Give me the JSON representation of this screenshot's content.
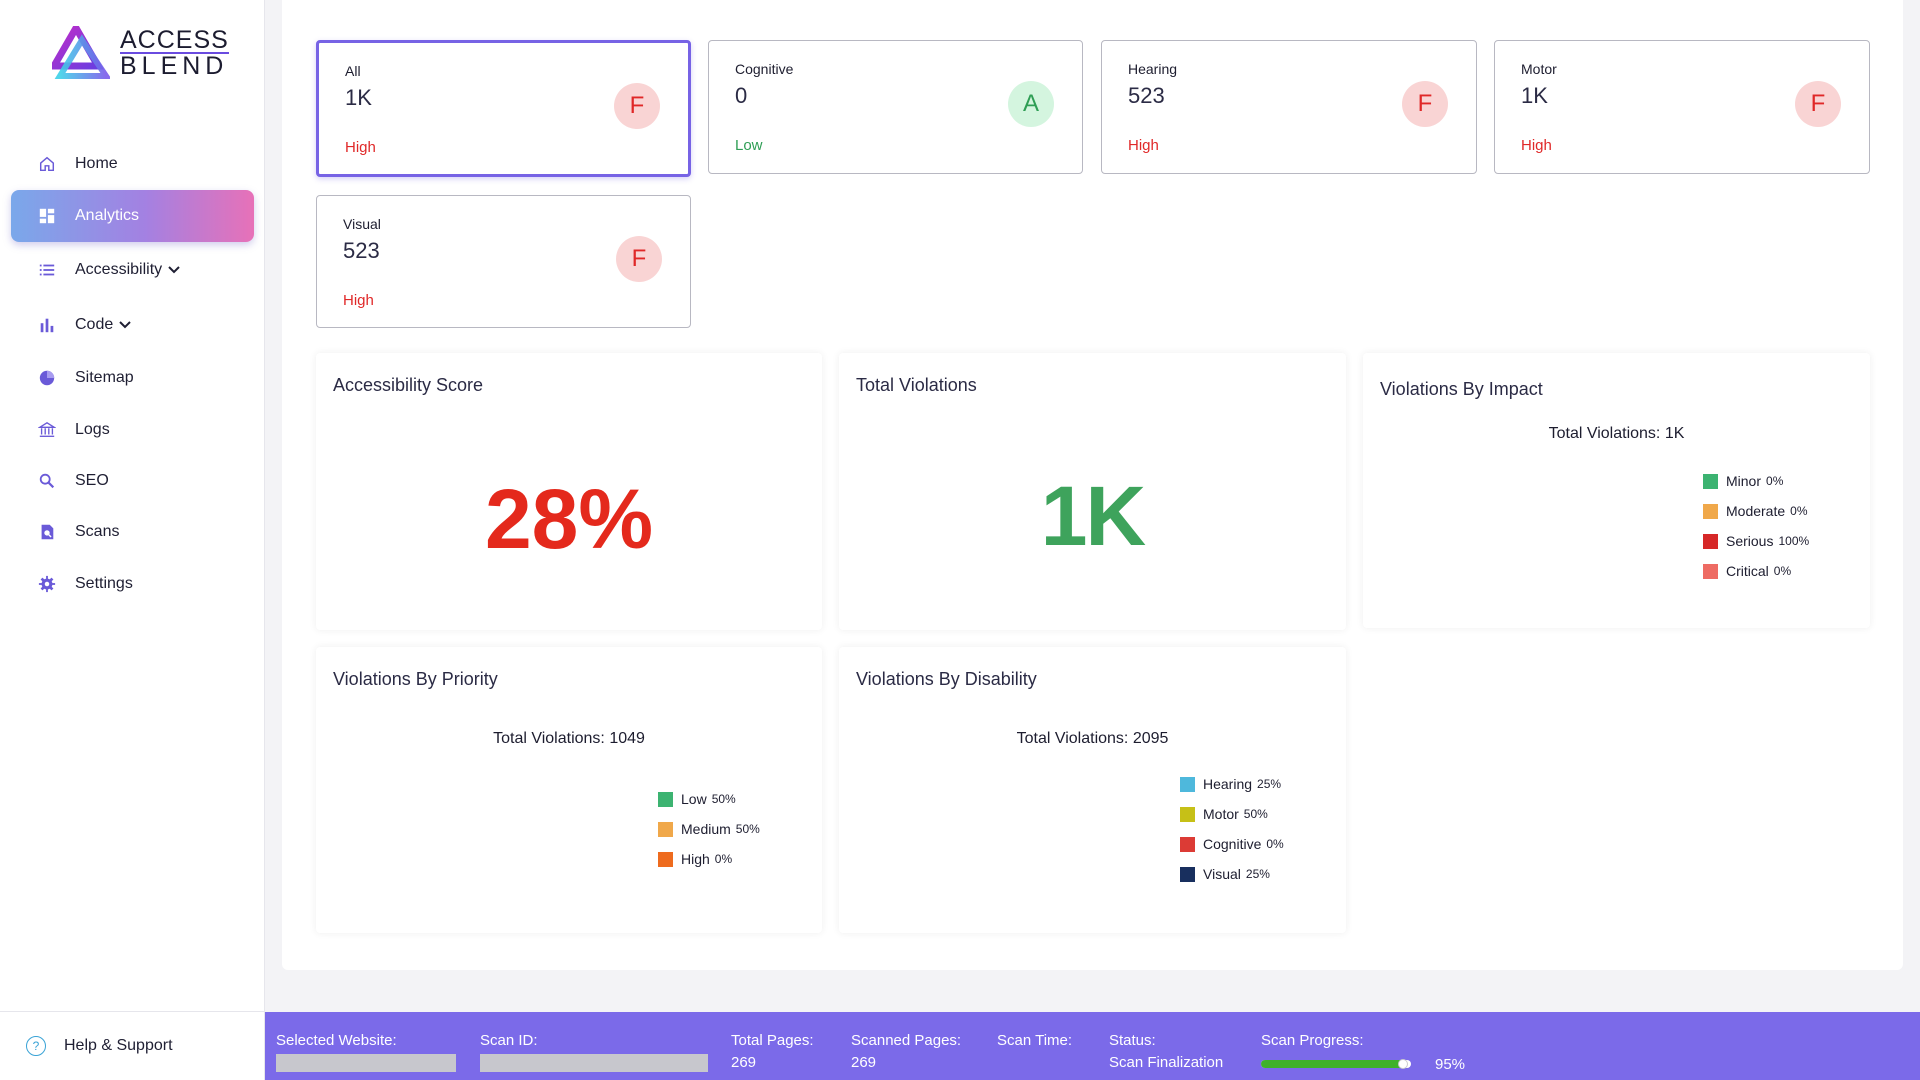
{
  "brand": {
    "line1": "ACCESS",
    "line2": "BLEND"
  },
  "nav": [
    {
      "label": "Home",
      "icon": "home-icon",
      "active": false
    },
    {
      "label": "Analytics",
      "icon": "dashboard-icon",
      "active": true
    },
    {
      "label": "Accessibility",
      "icon": "list-icon",
      "active": false,
      "dropdown": true
    },
    {
      "label": "Code",
      "icon": "bar-chart-icon",
      "active": false,
      "dropdown": true
    },
    {
      "label": "Sitemap",
      "icon": "pie-chart-icon",
      "active": false
    },
    {
      "label": "Logs",
      "icon": "bank-icon",
      "active": false
    },
    {
      "label": "SEO",
      "icon": "search-icon",
      "active": false
    },
    {
      "label": "Scans",
      "icon": "scan-document-icon",
      "active": false
    },
    {
      "label": "Settings",
      "icon": "gear-icon",
      "active": false
    }
  ],
  "help": {
    "label": "Help & Support",
    "icon": "help-icon"
  },
  "cards": [
    {
      "label": "All",
      "value": "1K",
      "level": "High",
      "grade": "F"
    },
    {
      "label": "Cognitive",
      "value": "0",
      "level": "Low",
      "grade": "A"
    },
    {
      "label": "Hearing",
      "value": "523",
      "level": "High",
      "grade": "F"
    },
    {
      "label": "Motor",
      "value": "1K",
      "level": "High",
      "grade": "F"
    },
    {
      "label": "Visual",
      "value": "523",
      "level": "High",
      "grade": "F"
    }
  ],
  "score_panel": {
    "title": "Accessibility Score",
    "value": "28%"
  },
  "violations_panel": {
    "title": "Total Violations",
    "value": "1K"
  },
  "impact_panel": {
    "title": "Violations By Impact",
    "total": "Total Violations: 1K",
    "legend": [
      {
        "label": "Minor",
        "pct": "0%",
        "color": "#3cb371"
      },
      {
        "label": "Moderate",
        "pct": "0%",
        "color": "#f0a84a"
      },
      {
        "label": "Serious",
        "pct": "100%",
        "color": "#d62828"
      },
      {
        "label": "Critical",
        "pct": "0%",
        "color": "#ee6b63"
      }
    ]
  },
  "priority_panel": {
    "title": "Violations By Priority",
    "total": "Total Violations: 1049",
    "legend": [
      {
        "label": "Low",
        "pct": "50%",
        "color": "#3cb371"
      },
      {
        "label": "Medium",
        "pct": "50%",
        "color": "#f0a84a"
      },
      {
        "label": "High",
        "pct": "0%",
        "color": "#ee6b1e"
      }
    ]
  },
  "disability_panel": {
    "title": "Violations By Disability",
    "total": "Total Violations: 2095",
    "legend": [
      {
        "label": "Hearing",
        "pct": "25%",
        "color": "#4eb8dc"
      },
      {
        "label": "Motor",
        "pct": "50%",
        "color": "#c6c017"
      },
      {
        "label": "Cognitive",
        "pct": "0%",
        "color": "#dc3b35"
      },
      {
        "label": "Visual",
        "pct": "25%",
        "color": "#182f5e"
      }
    ]
  },
  "status_bar": {
    "selected_website_label": "Selected Website:",
    "scan_id_label": "Scan ID:",
    "total_pages_label": "Total Pages:",
    "total_pages": "269",
    "scanned_pages_label": "Scanned Pages:",
    "scanned_pages": "269",
    "scan_time_label": "Scan Time:",
    "status_label": "Status:",
    "status": "Scan Finalization",
    "scan_progress_label": "Scan Progress:",
    "scan_progress": "95%",
    "scan_progress_fraction": 0.95
  }
}
